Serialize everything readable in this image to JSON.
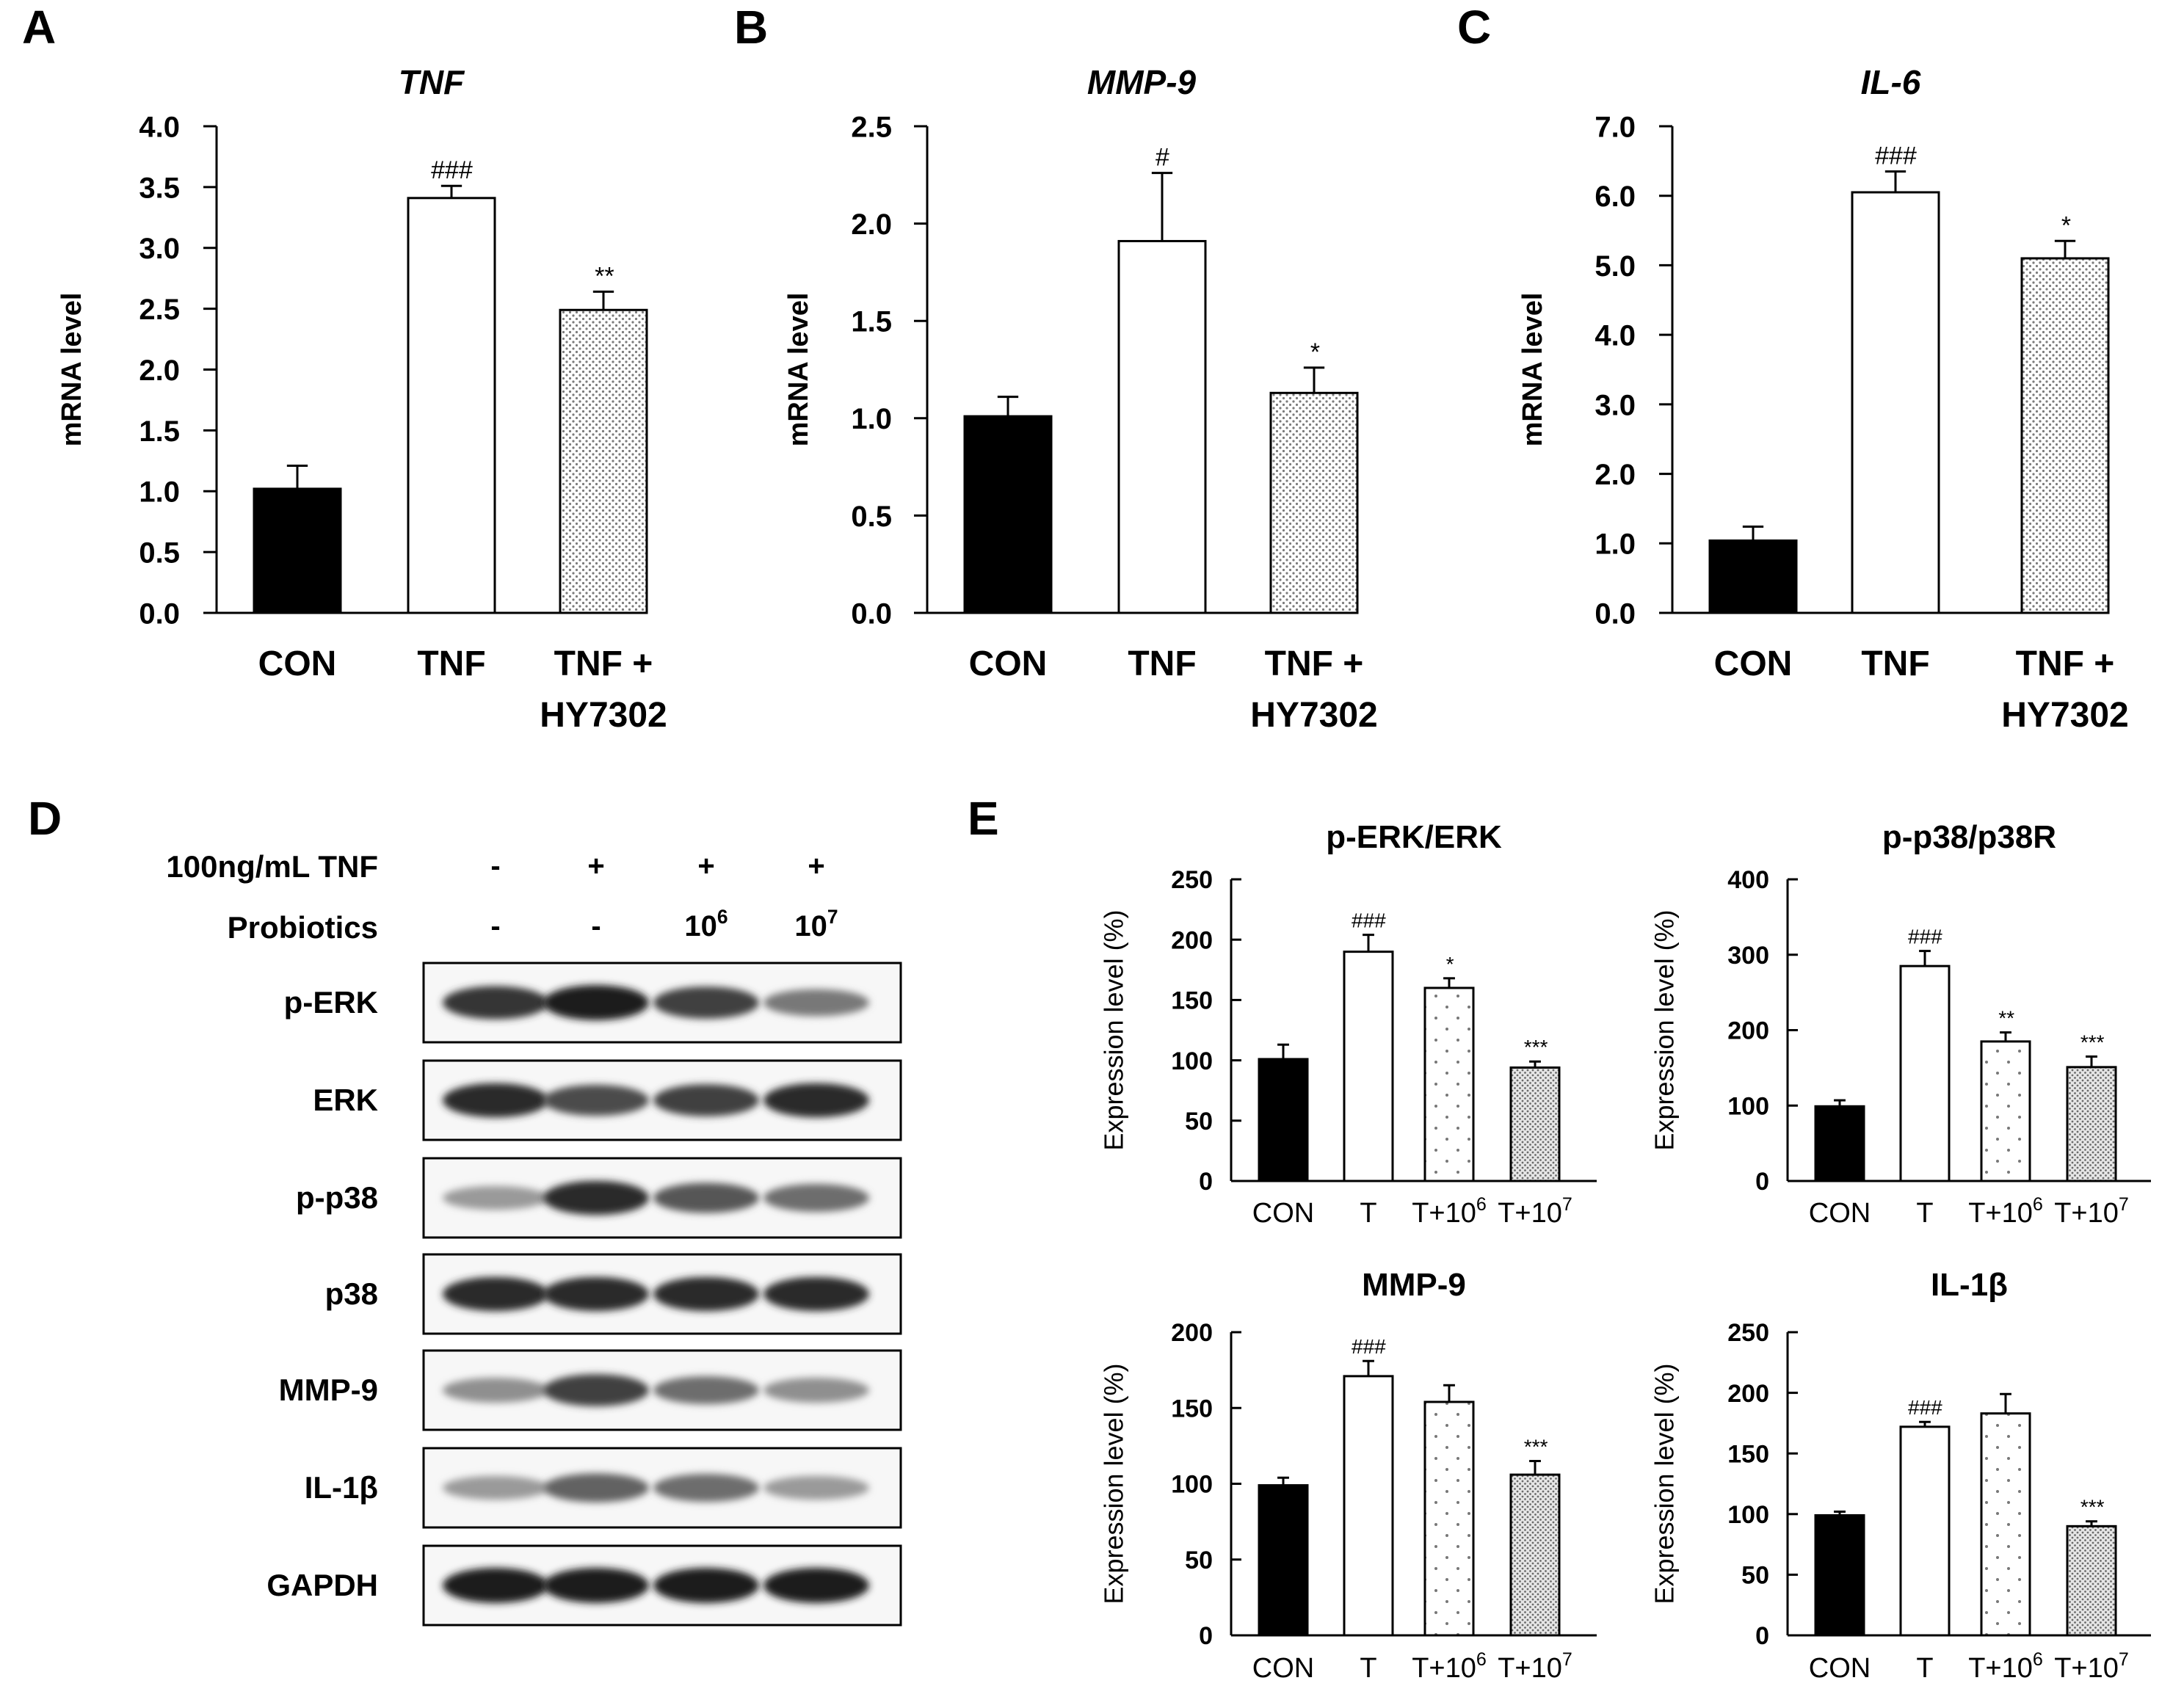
{
  "panel_letters": {
    "A": "A",
    "B": "B",
    "C": "C",
    "D": "D",
    "E": "E"
  },
  "chart_data": [
    {
      "id": "A",
      "type": "bar",
      "title": "TNF",
      "title_italic": true,
      "ylabel": "mRNA level",
      "ylim": [
        0,
        4.0
      ],
      "yticks": [
        "0.0",
        "0.5",
        "1.0",
        "1.5",
        "2.0",
        "2.5",
        "3.0",
        "3.5",
        "4.0"
      ],
      "categories": [
        [
          "CON"
        ],
        [
          "TNF"
        ],
        [
          "TNF +",
          "HY7302"
        ]
      ],
      "values": [
        1.02,
        3.41,
        2.49
      ],
      "errors": [
        0.19,
        0.1,
        0.15
      ],
      "significance": [
        "",
        "###",
        "**"
      ],
      "fills": [
        "solid",
        "white",
        "dots"
      ]
    },
    {
      "id": "B",
      "type": "bar",
      "title": "MMP-9",
      "title_italic": true,
      "ylabel": "mRNA level",
      "ylim": [
        0,
        2.5
      ],
      "yticks": [
        "0.0",
        "0.5",
        "1.0",
        "1.5",
        "2.0",
        "2.5"
      ],
      "categories": [
        [
          "CON"
        ],
        [
          "TNF"
        ],
        [
          "TNF +",
          "HY7302"
        ]
      ],
      "values": [
        1.01,
        1.91,
        1.13
      ],
      "errors": [
        0.1,
        0.35,
        0.13
      ],
      "significance": [
        "",
        "#",
        "*"
      ],
      "fills": [
        "solid",
        "white",
        "dots"
      ]
    },
    {
      "id": "C",
      "type": "bar",
      "title": "IL-6",
      "title_italic": true,
      "ylabel": "mRNA level",
      "ylim": [
        0,
        7.0
      ],
      "yticks": [
        "0.0",
        "1.0",
        "2.0",
        "3.0",
        "4.0",
        "5.0",
        "6.0",
        "7.0"
      ],
      "categories": [
        [
          "CON"
        ],
        [
          "TNF"
        ],
        [
          "TNF +",
          "HY7302"
        ]
      ],
      "values": [
        1.04,
        6.05,
        5.1
      ],
      "errors": [
        0.2,
        0.3,
        0.25
      ],
      "significance": [
        "",
        "###",
        "*"
      ],
      "fills": [
        "solid",
        "white",
        "dots"
      ]
    },
    {
      "id": "E1",
      "type": "bar",
      "title": "p-ERK/ERK",
      "title_italic": false,
      "ylabel": "Expression level (%)",
      "ylim": [
        0,
        250
      ],
      "yticks": [
        "0",
        "50",
        "100",
        "150",
        "200",
        "250"
      ],
      "categories": [
        [
          "CON"
        ],
        [
          "T"
        ],
        [
          "T+10",
          "6"
        ],
        [
          "T+10",
          "7"
        ]
      ],
      "values": [
        101,
        190,
        160,
        94
      ],
      "errors": [
        12,
        14,
        8,
        5
      ],
      "significance": [
        "",
        "###",
        "*",
        "***"
      ],
      "fills": [
        "solid",
        "white",
        "dots-sparse",
        "dots-dense"
      ]
    },
    {
      "id": "E2",
      "type": "bar",
      "title": "p-p38/p38R",
      "title_italic": false,
      "ylabel": "Expression level (%)",
      "ylim": [
        0,
        400
      ],
      "yticks": [
        "0",
        "100",
        "200",
        "300",
        "400"
      ],
      "categories": [
        [
          "CON"
        ],
        [
          "T"
        ],
        [
          "T+10",
          "6"
        ],
        [
          "T+10",
          "7"
        ]
      ],
      "values": [
        99,
        285,
        185,
        151
      ],
      "errors": [
        8,
        20,
        12,
        14
      ],
      "significance": [
        "",
        "###",
        "**",
        "***"
      ],
      "fills": [
        "solid",
        "white",
        "dots-sparse",
        "dots-dense"
      ]
    },
    {
      "id": "E3",
      "type": "bar",
      "title": "MMP-9",
      "title_italic": false,
      "ylabel": "Expression level (%)",
      "ylim": [
        0,
        200
      ],
      "yticks": [
        "0",
        "50",
        "100",
        "150",
        "200"
      ],
      "categories": [
        [
          "CON"
        ],
        [
          "T"
        ],
        [
          "T+10",
          "6"
        ],
        [
          "T+10",
          "7"
        ]
      ],
      "values": [
        99,
        171,
        154,
        106
      ],
      "errors": [
        5,
        10,
        11,
        9
      ],
      "significance": [
        "",
        "###",
        "",
        "***"
      ],
      "fills": [
        "solid",
        "white",
        "dots-sparse",
        "dots-dense"
      ]
    },
    {
      "id": "E4",
      "type": "bar",
      "title": "IL-1β",
      "title_italic": false,
      "ylabel": "Expression level (%)",
      "ylim": [
        0,
        250
      ],
      "yticks": [
        "0",
        "50",
        "100",
        "150",
        "200",
        "250"
      ],
      "categories": [
        [
          "CON"
        ],
        [
          "T"
        ],
        [
          "T+10",
          "6"
        ],
        [
          "T+10",
          "7"
        ]
      ],
      "values": [
        99,
        172,
        183,
        90
      ],
      "errors": [
        3,
        4,
        16,
        4
      ],
      "significance": [
        "",
        "###",
        "",
        "***"
      ],
      "fills": [
        "solid",
        "white",
        "dots-sparse",
        "dots-dense"
      ]
    }
  ],
  "western_blot": {
    "treatment_label": "100ng/mL TNF",
    "treatment_marks": [
      "-",
      "+",
      "+",
      "+"
    ],
    "probiotics_label": "Probiotics",
    "probiotics_marks": [
      [
        "-",
        ""
      ],
      [
        "-",
        ""
      ],
      [
        "10",
        "6"
      ],
      [
        "10",
        "7"
      ]
    ],
    "rows": [
      {
        "label": "p-ERK",
        "intensities": [
          0.9,
          1.0,
          0.85,
          0.6
        ]
      },
      {
        "label": "ERK",
        "intensities": [
          0.95,
          0.8,
          0.85,
          0.95
        ]
      },
      {
        "label": "p-p38",
        "intensities": [
          0.45,
          0.95,
          0.75,
          0.65
        ]
      },
      {
        "label": "p38",
        "intensities": [
          0.95,
          0.95,
          0.95,
          0.95
        ]
      },
      {
        "label": "MMP-9",
        "intensities": [
          0.5,
          0.85,
          0.65,
          0.5
        ]
      },
      {
        "label": "IL-1β",
        "intensities": [
          0.45,
          0.7,
          0.65,
          0.45
        ]
      },
      {
        "label": "GAPDH",
        "intensities": [
          1.0,
          1.0,
          1.0,
          1.0
        ]
      }
    ]
  }
}
